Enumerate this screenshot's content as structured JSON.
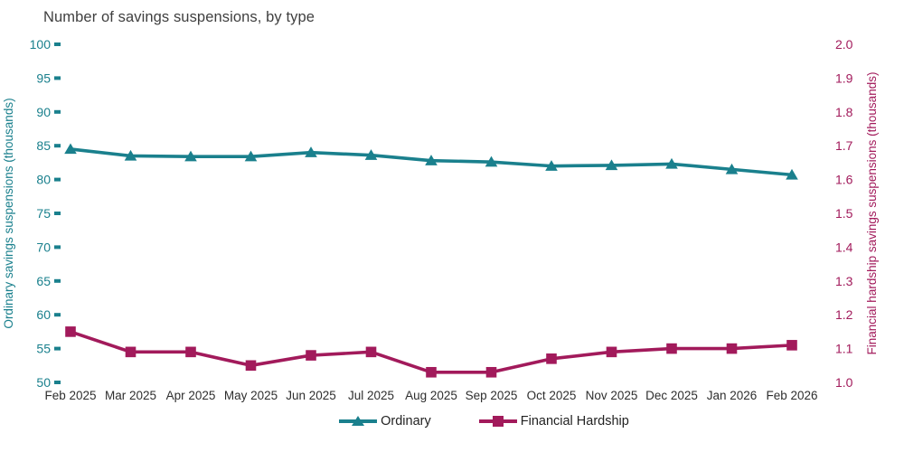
{
  "title": "Number of savings suspensions, by type",
  "chart_data": {
    "type": "line",
    "title": "Number of savings suspensions, by type",
    "categories": [
      "Feb 2025",
      "Mar 2025",
      "Apr 2025",
      "May 2025",
      "Jun 2025",
      "Jul 2025",
      "Aug 2025",
      "Sep 2025",
      "Oct 2025",
      "Nov 2025",
      "Dec 2025",
      "Jan 2026",
      "Feb 2026"
    ],
    "series": [
      {
        "name": "Ordinary",
        "axis": "left",
        "marker": "triangle",
        "color": "#1a808d",
        "values": [
          84.5,
          83.5,
          83.4,
          83.4,
          84.0,
          83.6,
          82.8,
          82.6,
          82.0,
          82.1,
          82.3,
          81.5,
          80.7
        ]
      },
      {
        "name": "Financial Hardship",
        "axis": "right",
        "marker": "square",
        "color": "#a21a5b",
        "values": [
          1.15,
          1.09,
          1.09,
          1.05,
          1.08,
          1.09,
          1.03,
          1.03,
          1.07,
          1.09,
          1.1,
          1.1,
          1.11
        ]
      }
    ],
    "axes": {
      "left": {
        "label": "Ordinary savings suspensions (thousands)",
        "min": 50,
        "max": 100,
        "step": 5,
        "color": "#1a808d",
        "tick_format": "integer"
      },
      "right": {
        "label": "Financial hardship savings suspensions (thousands)",
        "min": 1.0,
        "max": 2.0,
        "step": 0.1,
        "color": "#a21a5b",
        "tick_format": "one_decimal"
      }
    },
    "x_tick_color": "#2e2e2e",
    "grid": false,
    "legend_position": "bottom"
  }
}
